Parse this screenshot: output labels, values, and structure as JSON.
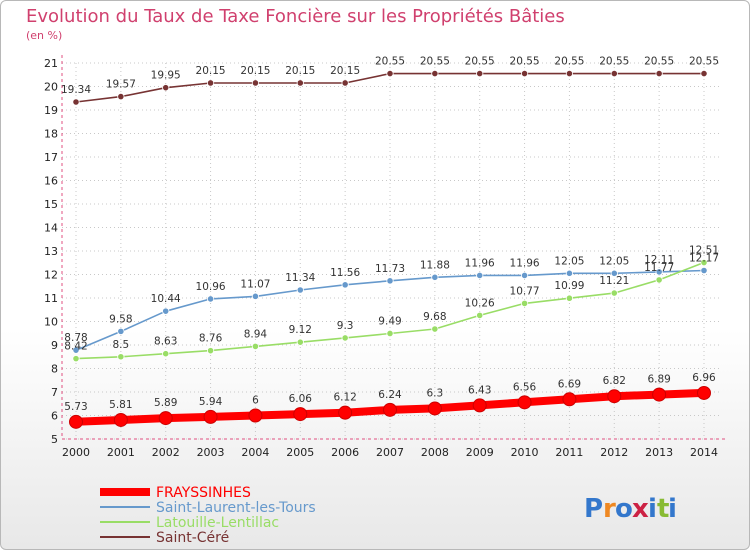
{
  "chart_data": {
    "type": "line",
    "title": "Evolution du Taux de Taxe Foncière sur les Propriétés Bâties",
    "subtitle": "(en %)",
    "xlabel": "",
    "ylabel": "",
    "ylim": [
      5,
      21
    ],
    "yticks": [
      5,
      6,
      7,
      8,
      9,
      10,
      11,
      12,
      13,
      14,
      15,
      16,
      17,
      18,
      19,
      20,
      21
    ],
    "categories": [
      "2000",
      "2001",
      "2002",
      "2003",
      "2004",
      "2005",
      "2006",
      "2007",
      "2008",
      "2009",
      "2010",
      "2011",
      "2012",
      "2013",
      "2014"
    ],
    "series": [
      {
        "name": "FRAYSSINHES",
        "color": "#ff0000",
        "emphasis": true,
        "values": [
          5.73,
          5.81,
          5.89,
          5.94,
          6,
          6.06,
          6.12,
          6.24,
          6.3,
          6.43,
          6.56,
          6.69,
          6.82,
          6.89,
          6.96
        ],
        "labels": [
          "5.73",
          "5.81",
          "5.89",
          "5.94",
          "6",
          "6.06",
          "6.12",
          "6.24",
          "6.3",
          "6.43",
          "6.56",
          "6.69",
          "6.82",
          "6.89",
          "6.96"
        ]
      },
      {
        "name": "Saint-Laurent-les-Tours",
        "color": "#6699cc",
        "emphasis": false,
        "values": [
          8.78,
          9.58,
          10.44,
          10.96,
          11.07,
          11.34,
          11.56,
          11.73,
          11.88,
          11.96,
          11.96,
          12.05,
          12.05,
          12.11,
          12.17
        ],
        "labels": [
          "8.78",
          "9.58",
          "10.44",
          "10.96",
          "11.07",
          "11.34",
          "11.56",
          "11.73",
          "11.88",
          "11.96",
          "11.96",
          "12.05",
          "12.05",
          "12.11",
          "12.17"
        ]
      },
      {
        "name": "Latouille-Lentillac",
        "color": "#99dd66",
        "emphasis": false,
        "values": [
          8.42,
          8.5,
          8.63,
          8.76,
          8.94,
          9.12,
          9.3,
          9.49,
          9.68,
          10.26,
          10.77,
          10.99,
          11.21,
          11.77,
          12.51
        ],
        "labels": [
          "8.42",
          "8.5",
          "8.63",
          "8.76",
          "8.94",
          "9.12",
          "9.3",
          "9.49",
          "9.68",
          "10.26",
          "10.77",
          "10.99",
          "11.21",
          "11.77",
          "12.51"
        ]
      },
      {
        "name": "Saint-Céré",
        "color": "#773333",
        "emphasis": false,
        "values": [
          19.34,
          19.57,
          19.95,
          20.15,
          20.15,
          20.15,
          20.15,
          20.55,
          20.55,
          20.55,
          20.55,
          20.55,
          20.55,
          20.55,
          20.55
        ],
        "labels": [
          "19.34",
          "19.57",
          "19.95",
          "20.15",
          "20.15",
          "20.15",
          "20.15",
          "20.55",
          "20.55",
          "20.55",
          "20.55",
          "20.55",
          "20.55",
          "20.55",
          "20.55"
        ]
      }
    ]
  },
  "logo": {
    "letters": [
      "P",
      "r",
      "o",
      "x",
      "i",
      "t",
      "i"
    ],
    "colors": [
      "#3377cc",
      "#ee8822",
      "#3377cc",
      "#cc2244",
      "#3377cc",
      "#88bb33",
      "#3377cc"
    ]
  }
}
